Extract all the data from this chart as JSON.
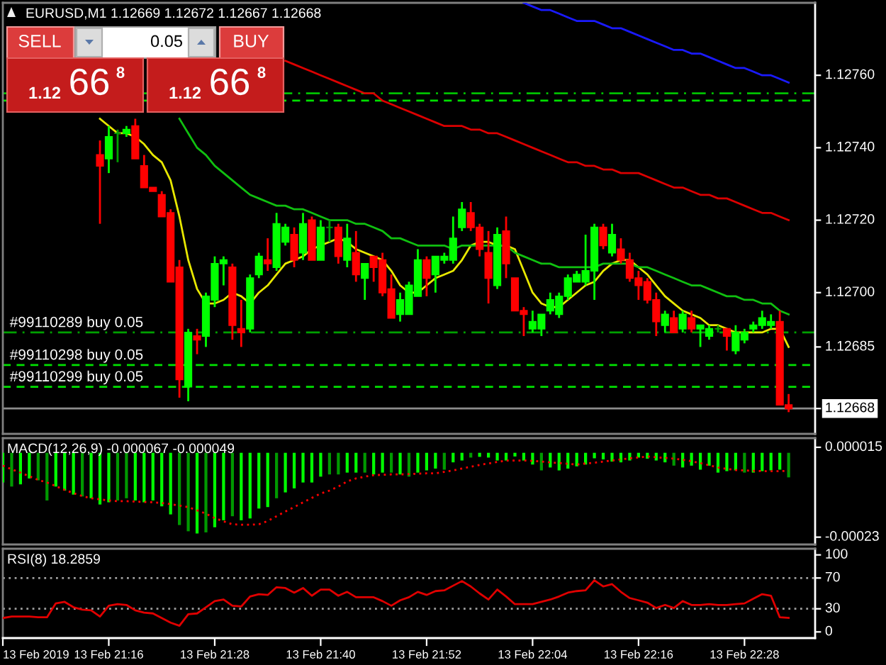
{
  "chart_data": [
    {
      "type": "candlestick",
      "title": "EURUSD,M1 1.12669 1.12672 1.12667 1.12668",
      "x": [
        "2019-02-13T21:15",
        "2019-02-13T21:16",
        "2019-02-13T21:17",
        "2019-02-13T21:18",
        "2019-02-13T21:19",
        "2019-02-13T21:20",
        "2019-02-13T21:21",
        "2019-02-13T21:22",
        "2019-02-13T21:23",
        "2019-02-13T21:24",
        "2019-02-13T21:25",
        "2019-02-13T21:26",
        "2019-02-13T21:27",
        "2019-02-13T21:28",
        "2019-02-13T21:29",
        "2019-02-13T21:30",
        "2019-02-13T21:31",
        "2019-02-13T21:32",
        "2019-02-13T21:33",
        "2019-02-13T21:34",
        "2019-02-13T21:35",
        "2019-02-13T21:36",
        "2019-02-13T21:37",
        "2019-02-13T21:38",
        "2019-02-13T21:39",
        "2019-02-13T21:40",
        "2019-02-13T21:41",
        "2019-02-13T21:42",
        "2019-02-13T21:43",
        "2019-02-13T21:44",
        "2019-02-13T21:45",
        "2019-02-13T21:46",
        "2019-02-13T21:47",
        "2019-02-13T21:48",
        "2019-02-13T21:49",
        "2019-02-13T21:50",
        "2019-02-13T21:51",
        "2019-02-13T21:52",
        "2019-02-13T21:53",
        "2019-02-13T21:54",
        "2019-02-13T21:55",
        "2019-02-13T21:56",
        "2019-02-13T21:57",
        "2019-02-13T21:58",
        "2019-02-13T21:59",
        "2019-02-13T22:00",
        "2019-02-13T22:01",
        "2019-02-13T22:02",
        "2019-02-13T22:03",
        "2019-02-13T22:04",
        "2019-02-13T22:05",
        "2019-02-13T22:06",
        "2019-02-13T22:07",
        "2019-02-13T22:08",
        "2019-02-13T22:09",
        "2019-02-13T22:10",
        "2019-02-13T22:11",
        "2019-02-13T22:12",
        "2019-02-13T22:13",
        "2019-02-13T22:14",
        "2019-02-13T22:15",
        "2019-02-13T22:16",
        "2019-02-13T22:17",
        "2019-02-13T22:18",
        "2019-02-13T22:19",
        "2019-02-13T22:20",
        "2019-02-13T22:21",
        "2019-02-13T22:22",
        "2019-02-13T22:23",
        "2019-02-13T22:24",
        "2019-02-13T22:25",
        "2019-02-13T22:26",
        "2019-02-13T22:27",
        "2019-02-13T22:28",
        "2019-02-13T22:29",
        "2019-02-13T22:30",
        "2019-02-13T22:31",
        "2019-02-13T22:32",
        "2019-02-13T22:33"
      ],
      "ohlc": [
        [
          1.12738,
          1.12742,
          1.12719,
          1.12735
        ],
        [
          1.12737,
          1.12746,
          1.12733,
          1.12743
        ],
        [
          1.12744,
          1.12745,
          1.12736,
          1.12744
        ],
        [
          1.12744,
          1.12746,
          1.12743,
          1.12745
        ],
        [
          1.12746,
          1.12748,
          1.12737,
          1.12737
        ],
        [
          1.12735,
          1.12738,
          1.12729,
          1.12729
        ],
        [
          1.12729,
          1.12729,
          1.12728,
          1.12728
        ],
        [
          1.12727,
          1.12728,
          1.12721,
          1.12721
        ],
        [
          1.12722,
          1.12723,
          1.12703,
          1.12703
        ],
        [
          1.12707,
          1.12709,
          1.12671,
          1.12676
        ],
        [
          1.12674,
          1.1269,
          1.1267,
          1.12689
        ],
        [
          1.12688,
          1.1269,
          1.12683,
          1.12687
        ],
        [
          1.12688,
          1.127,
          1.12685,
          1.12699
        ],
        [
          1.12698,
          1.1271,
          1.12696,
          1.12708
        ],
        [
          1.12708,
          1.1271,
          1.12702,
          1.12709
        ],
        [
          1.12707,
          1.12708,
          1.12687,
          1.12691
        ],
        [
          1.1269,
          1.12698,
          1.12685,
          1.12689
        ],
        [
          1.1269,
          1.12705,
          1.12689,
          1.12704
        ],
        [
          1.12705,
          1.12711,
          1.12704,
          1.1271
        ],
        [
          1.12709,
          1.12715,
          1.12706,
          1.12708
        ],
        [
          1.12707,
          1.12722,
          1.12706,
          1.12719
        ],
        [
          1.12714,
          1.12719,
          1.12713,
          1.12718
        ],
        [
          1.12716,
          1.12718,
          1.12707,
          1.12709
        ],
        [
          1.12711,
          1.12722,
          1.12709,
          1.12719
        ],
        [
          1.1272,
          1.12721,
          1.12709,
          1.12709
        ],
        [
          1.12709,
          1.1272,
          1.12709,
          1.12718
        ],
        [
          1.12718,
          1.1272,
          1.12714,
          1.12718
        ],
        [
          1.12718,
          1.12719,
          1.12708,
          1.1271
        ],
        [
          1.12709,
          1.12719,
          1.12707,
          1.12715
        ],
        [
          1.12711,
          1.12717,
          1.12703,
          1.12705
        ],
        [
          1.12704,
          1.12708,
          1.12698,
          1.12708
        ],
        [
          1.1271,
          1.1271,
          1.12703,
          1.12707
        ],
        [
          1.12709,
          1.12711,
          1.12699,
          1.127
        ],
        [
          1.12701,
          1.12705,
          1.12693,
          1.12693
        ],
        [
          1.12694,
          1.127,
          1.12692,
          1.12698
        ],
        [
          1.12694,
          1.12703,
          1.12694,
          1.12702
        ],
        [
          1.12699,
          1.12712,
          1.12699,
          1.12709
        ],
        [
          1.12709,
          1.1271,
          1.12699,
          1.12704
        ],
        [
          1.12705,
          1.1271,
          1.127,
          1.1271
        ],
        [
          1.12709,
          1.12711,
          1.12708,
          1.1271
        ],
        [
          1.12709,
          1.12721,
          1.12708,
          1.12715
        ],
        [
          1.12718,
          1.12725,
          1.12717,
          1.12723
        ],
        [
          1.12722,
          1.12725,
          1.12717,
          1.12718
        ],
        [
          1.12718,
          1.12719,
          1.1271,
          1.12712
        ],
        [
          1.12711,
          1.12717,
          1.12697,
          1.12704
        ],
        [
          1.12702,
          1.12718,
          1.12701,
          1.12716
        ],
        [
          1.12717,
          1.12721,
          1.12704,
          1.12708
        ],
        [
          1.12704,
          1.12704,
          1.12695,
          1.12695
        ],
        [
          1.12695,
          1.12696,
          1.12688,
          1.12694
        ],
        [
          1.1269,
          1.12695,
          1.12689,
          1.12692
        ],
        [
          1.1269,
          1.12694,
          1.12688,
          1.12694
        ],
        [
          1.12695,
          1.127,
          1.12694,
          1.12698
        ],
        [
          1.12694,
          1.127,
          1.12693,
          1.12699
        ],
        [
          1.12699,
          1.12705,
          1.12698,
          1.12704
        ],
        [
          1.12703,
          1.12706,
          1.12703,
          1.12705
        ],
        [
          1.12703,
          1.12716,
          1.12702,
          1.12706
        ],
        [
          1.12706,
          1.12719,
          1.12698,
          1.12718
        ],
        [
          1.12718,
          1.12719,
          1.12712,
          1.12713
        ],
        [
          1.12711,
          1.12719,
          1.1271,
          1.12716
        ],
        [
          1.12712,
          1.12715,
          1.12708,
          1.12709
        ],
        [
          1.12709,
          1.12711,
          1.12703,
          1.12704
        ],
        [
          1.12704,
          1.12706,
          1.12698,
          1.12702
        ],
        [
          1.12703,
          1.12704,
          1.12697,
          1.12698
        ],
        [
          1.12698,
          1.127,
          1.12688,
          1.12692
        ],
        [
          1.12691,
          1.12695,
          1.12689,
          1.12694
        ],
        [
          1.12693,
          1.12695,
          1.12689,
          1.12689
        ],
        [
          1.1269,
          1.12695,
          1.12689,
          1.12694
        ],
        [
          1.12693,
          1.12695,
          1.12689,
          1.1269
        ],
        [
          1.1269,
          1.12691,
          1.12685,
          1.12691
        ],
        [
          1.12688,
          1.12691,
          1.12687,
          1.1269
        ],
        [
          1.1269,
          1.12691,
          1.12689,
          1.1269
        ],
        [
          1.1269,
          1.1269,
          1.12684,
          1.12688
        ],
        [
          1.12684,
          1.12691,
          1.12683,
          1.12689
        ],
        [
          1.12687,
          1.1269,
          1.12686,
          1.12689
        ],
        [
          1.1269,
          1.12692,
          1.12689,
          1.12691
        ],
        [
          1.12691,
          1.12695,
          1.1269,
          1.12693
        ],
        [
          1.12691,
          1.12694,
          1.1269,
          1.12692
        ],
        [
          1.12692,
          1.12695,
          1.12669,
          1.12669
        ],
        [
          1.12669,
          1.12672,
          1.12667,
          1.12668
        ]
      ],
      "colors": [
        "#ff0000",
        "#00ff00",
        "#00a000",
        "#00ff00",
        "#ff0000",
        "#ff0000",
        "#ff0000",
        "#ff0000",
        "#ff0000",
        "#ff0000",
        "#00ff00",
        "#ff0000",
        "#00ff00",
        "#00ff00",
        "#00ff00",
        "#ff0000",
        "#ff0000",
        "#00ff00",
        "#00ff00",
        "#ff0000",
        "#00ff00",
        "#00ff00",
        "#ff0000",
        "#00ff00",
        "#ff0000",
        "#00ff00",
        "#00a000",
        "#ff0000",
        "#00ff00",
        "#ff0000",
        "#00ff00",
        "#ff0000",
        "#ff0000",
        "#ff0000",
        "#00ff00",
        "#00ff00",
        "#00ff00",
        "#ff0000",
        "#00ff00",
        "#00ff00",
        "#00ff00",
        "#00ff00",
        "#ff0000",
        "#ff0000",
        "#ff0000",
        "#00ff00",
        "#ff0000",
        "#ff0000",
        "#ff0000",
        "#00ff00",
        "#00ff00",
        "#00ff00",
        "#00ff00",
        "#00ff00",
        "#00ff00",
        "#00ff00",
        "#00ff00",
        "#ff0000",
        "#00ff00",
        "#ff0000",
        "#ff0000",
        "#ff0000",
        "#ff0000",
        "#ff0000",
        "#00ff00",
        "#ff0000",
        "#00ff00",
        "#ff0000",
        "#00ff00",
        "#00ff00",
        "#00a000",
        "#ff0000",
        "#00ff00",
        "#00ff00",
        "#00ff00",
        "#00ff00",
        "#00ff00",
        "#ff0000",
        "#ff0000"
      ],
      "series": [
        {
          "type": "line",
          "color": "#e8e800",
          "values": [
            1.12748,
            1.12746,
            1.12744,
            1.12744,
            1.12743,
            1.12741,
            1.12738,
            1.12736,
            1.12731,
            1.12721,
            1.12709,
            1.12701,
            1.12697,
            1.12697,
            1.12698,
            1.127,
            1.12699,
            1.12697,
            1.127,
            1.12702,
            1.12705,
            1.12708,
            1.12709,
            1.1271,
            1.12712,
            1.12713,
            1.12714,
            1.12715,
            1.12714,
            1.12712,
            1.12711,
            1.1271,
            1.12709,
            1.12706,
            1.12702,
            1.127,
            1.127,
            1.12702,
            1.12704,
            1.12705,
            1.12706,
            1.12709,
            1.12713,
            1.12714,
            1.12714,
            1.12713,
            1.12713,
            1.12712,
            1.12706,
            1.127,
            1.12697,
            1.12696,
            1.12696,
            1.12698,
            1.127,
            1.12702,
            1.12703,
            1.12706,
            1.12708,
            1.12709,
            1.12709,
            1.12707,
            1.12705,
            1.12702,
            1.12699,
            1.12697,
            1.12695,
            1.12694,
            1.12693,
            1.12691,
            1.12691,
            1.1269,
            1.12689,
            1.12689,
            1.12689,
            1.12689,
            1.1269,
            1.1269,
            1.12685
          ]
        },
        {
          "type": "line",
          "color": "#10c010",
          "values": [
            null,
            null,
            null,
            null,
            null,
            null,
            null,
            null,
            null,
            1.12748,
            1.12744,
            1.1274,
            1.12738,
            1.12735,
            1.12733,
            1.12731,
            1.12729,
            1.12727,
            1.12726,
            1.12725,
            1.12724,
            1.12724,
            1.12723,
            1.12723,
            1.12722,
            1.12721,
            1.1272,
            1.1272,
            1.1272,
            1.12719,
            1.12719,
            1.12718,
            1.12717,
            1.12715,
            1.12715,
            1.12714,
            1.12713,
            1.12713,
            1.12713,
            1.12713,
            1.12712,
            1.12713,
            1.12713,
            1.12713,
            1.12713,
            1.12713,
            1.12713,
            1.12711,
            1.1271,
            1.12709,
            1.12708,
            1.12708,
            1.12707,
            1.12707,
            1.12707,
            1.12707,
            1.12707,
            1.12708,
            1.12708,
            1.12708,
            1.12708,
            1.12707,
            1.12707,
            1.12706,
            1.12705,
            1.12704,
            1.12703,
            1.12702,
            1.12702,
            1.12701,
            1.127,
            1.12699,
            1.12699,
            1.12698,
            1.12698,
            1.12697,
            1.12697,
            1.12695,
            1.12694
          ]
        },
        {
          "type": "line",
          "color": "#dc0000",
          "values": [
            null,
            null,
            null,
            null,
            null,
            null,
            null,
            null,
            null,
            null,
            null,
            null,
            null,
            null,
            null,
            null,
            null,
            null,
            null,
            null,
            null,
            1.12764,
            1.12763,
            1.12762,
            1.12761,
            1.1276,
            1.12759,
            1.12758,
            1.12757,
            1.12756,
            1.12755,
            1.12755,
            1.12753,
            1.12752,
            1.12751,
            1.1275,
            1.12749,
            1.12748,
            1.12747,
            1.12746,
            1.12746,
            1.12746,
            1.12745,
            1.12745,
            1.12744,
            1.12744,
            1.12743,
            1.12742,
            1.12741,
            1.1274,
            1.12739,
            1.12738,
            1.12737,
            1.12736,
            1.12736,
            1.12735,
            1.12735,
            1.12734,
            1.12734,
            1.12733,
            1.12733,
            1.12733,
            1.12732,
            1.12731,
            1.1273,
            1.12729,
            1.12729,
            1.12728,
            1.12727,
            1.12727,
            1.12726,
            1.12726,
            1.12725,
            1.12724,
            1.12723,
            1.12722,
            1.12722,
            1.12721,
            1.1272
          ]
        },
        {
          "type": "line",
          "color": "#1a1aff",
          "values": [
            null,
            null,
            null,
            null,
            null,
            null,
            null,
            null,
            null,
            null,
            null,
            null,
            null,
            null,
            null,
            null,
            null,
            null,
            null,
            null,
            null,
            null,
            null,
            null,
            null,
            null,
            null,
            null,
            null,
            null,
            null,
            null,
            null,
            null,
            null,
            null,
            null,
            null,
            null,
            null,
            null,
            null,
            null,
            null,
            null,
            null,
            null,
            null,
            1.1278,
            1.12779,
            1.12778,
            1.12778,
            1.12777,
            1.12776,
            1.12775,
            1.12775,
            1.12775,
            1.12774,
            1.12773,
            1.12773,
            1.12772,
            1.12771,
            1.1277,
            1.12769,
            1.12768,
            1.12767,
            1.12767,
            1.12766,
            1.12766,
            1.12765,
            1.12764,
            1.12763,
            1.12762,
            1.12762,
            1.12761,
            1.1276,
            1.1276,
            1.12759,
            1.12758
          ]
        }
      ],
      "xlim": [
        "2019-02-13T21:04",
        "2019-02-13T22:36"
      ],
      "ylim": [
        1.12661,
        1.1278
      ],
      "yticks": [
        {
          "value": 1.1276,
          "label": "1.12760"
        },
        {
          "value": 1.1274,
          "label": "1.12740"
        },
        {
          "value": 1.1272,
          "label": "1.12720"
        },
        {
          "value": 1.127,
          "label": "1.12700"
        },
        {
          "value": 1.12685,
          "label": "1.12685"
        },
        {
          "value": 1.12668,
          "label": "1.12668"
        }
      ],
      "tick_labels": "y",
      "ref_lines": [
        {
          "axis": "y",
          "value": 1.12755,
          "color": "#00c000",
          "line_style": "dashdot"
        },
        {
          "axis": "y",
          "value": 1.12753,
          "color": "#00e000",
          "line_style": "dashed"
        },
        {
          "axis": "y",
          "value": 1.12689,
          "label": "#99110289 buy 0.05",
          "color": "#00a000",
          "line_style": "dashdot"
        },
        {
          "axis": "y",
          "value": 1.1268,
          "label": "#99110298 buy 0.05",
          "color": "#00e000",
          "line_style": "dashed"
        },
        {
          "axis": "y",
          "value": 1.12674,
          "label": "#99110299 buy 0.05",
          "color": "#00e000",
          "line_style": "dashed"
        },
        {
          "axis": "y",
          "value": 1.12668,
          "color": "#8c8c8c",
          "line_style": "solid"
        }
      ],
      "annotations": [
        "SELL",
        "0.05",
        "BUY",
        "1.12",
        "66",
        "8",
        "1.12",
        "66",
        "8"
      ],
      "grid": false
    },
    {
      "type": "bar",
      "title": "MACD(12,26,9) -0.000067 -0.000049",
      "x": [
        "2019-02-13T21:04",
        "2019-02-13T21:05",
        "2019-02-13T21:06",
        "2019-02-13T21:07",
        "2019-02-13T21:08",
        "2019-02-13T21:09",
        "2019-02-13T21:10",
        "2019-02-13T21:11",
        "2019-02-13T21:12",
        "2019-02-13T21:13",
        "2019-02-13T21:14",
        "2019-02-13T21:15",
        "2019-02-13T21:16",
        "2019-02-13T21:17",
        "2019-02-13T21:18",
        "2019-02-13T21:19",
        "2019-02-13T21:20",
        "2019-02-13T21:21",
        "2019-02-13T21:22",
        "2019-02-13T21:23",
        "2019-02-13T21:24",
        "2019-02-13T21:25",
        "2019-02-13T21:26",
        "2019-02-13T21:27",
        "2019-02-13T21:28",
        "2019-02-13T21:29",
        "2019-02-13T21:30",
        "2019-02-13T21:31",
        "2019-02-13T21:32",
        "2019-02-13T21:33",
        "2019-02-13T21:34",
        "2019-02-13T21:35",
        "2019-02-13T21:36",
        "2019-02-13T21:37",
        "2019-02-13T21:38",
        "2019-02-13T21:39",
        "2019-02-13T21:40",
        "2019-02-13T21:41",
        "2019-02-13T21:42",
        "2019-02-13T21:43",
        "2019-02-13T21:44",
        "2019-02-13T21:45",
        "2019-02-13T21:46",
        "2019-02-13T21:47",
        "2019-02-13T21:48",
        "2019-02-13T21:49",
        "2019-02-13T21:50",
        "2019-02-13T21:51",
        "2019-02-13T21:52",
        "2019-02-13T21:53",
        "2019-02-13T21:54",
        "2019-02-13T21:55",
        "2019-02-13T21:56",
        "2019-02-13T21:57",
        "2019-02-13T21:58",
        "2019-02-13T21:59",
        "2019-02-13T22:00",
        "2019-02-13T22:01",
        "2019-02-13T22:02",
        "2019-02-13T22:03",
        "2019-02-13T22:04",
        "2019-02-13T22:05",
        "2019-02-13T22:06",
        "2019-02-13T22:07",
        "2019-02-13T22:08",
        "2019-02-13T22:09",
        "2019-02-13T22:10",
        "2019-02-13T22:11",
        "2019-02-13T22:12",
        "2019-02-13T22:13",
        "2019-02-13T22:14",
        "2019-02-13T22:15",
        "2019-02-13T22:16",
        "2019-02-13T22:17",
        "2019-02-13T22:18",
        "2019-02-13T22:19",
        "2019-02-13T22:20",
        "2019-02-13T22:21",
        "2019-02-13T22:22",
        "2019-02-13T22:23",
        "2019-02-13T22:24",
        "2019-02-13T22:25",
        "2019-02-13T22:26",
        "2019-02-13T22:27",
        "2019-02-13T22:28",
        "2019-02-13T22:29",
        "2019-02-13T22:30",
        "2019-02-13T22:31",
        "2019-02-13T22:32",
        "2019-02-13T22:33"
      ],
      "series": [
        {
          "colors": [
            "#00ff00",
            "#009900",
            "#00ff00",
            "#00ff00",
            "#009900",
            "#009900",
            "#00ff00",
            "#00ff00",
            "#00ff00",
            "#009900",
            "#00ff00",
            "#00ff00",
            "#00ff00",
            "#009900",
            "#009900",
            "#00ff00",
            "#00ff00",
            "#00ff00",
            "#00ff00",
            "#00ff00",
            "#009900",
            "#009900",
            "#00ff00",
            "#009900",
            "#00ff00",
            "#00ff00",
            "#009900",
            "#00ff00",
            "#00ff00",
            "#00ff00",
            "#00ff00",
            "#009900",
            "#00ff00",
            "#00ff00",
            "#00ff00",
            "#00ff00",
            "#00ff00",
            "#009900",
            "#009900",
            "#00ff00",
            "#00ff00",
            "#009900",
            "#00ff00",
            "#00ff00",
            "#009900",
            "#00ff00",
            "#009900",
            "#00ff00",
            "#00ff00",
            "#00ff00",
            "#009900",
            "#00ff00",
            "#00ff00",
            "#009900",
            "#00ff00",
            "#00ff00",
            "#00ff00",
            "#00ff00",
            "#00ff00",
            "#00ff00",
            "#00ff00",
            "#009900",
            "#00ff00",
            "#00ff00",
            "#00ff00",
            "#00ff00",
            "#00ff00",
            "#00ff00",
            "#00ff00",
            "#00ff00",
            "#00ff00",
            "#00ff00",
            "#00ff00",
            "#00ff00",
            "#00ff00",
            "#00ff00",
            "#009900",
            "#00ff00",
            "#00ff00",
            "#00ff00",
            "#00ff00",
            "#00ff00",
            "#00ff00",
            "#00ff00",
            "#009900",
            "#00ff00",
            "#00ff00",
            "#00ff00",
            "#00ff00",
            "#009900"
          ],
          "values": [
            -8.1e-05,
            -9.2e-05,
            -8.6e-05,
            -7e-05,
            -7.5e-05,
            -0.00013,
            -9.2e-05,
            -0.000103,
            -0.000114,
            -0.000119,
            -0.000124,
            -0.000141,
            -0.000135,
            -0.00013,
            -0.000124,
            -0.00013,
            -0.000135,
            -0.00013,
            -0.000146,
            -0.000168,
            -0.000197,
            -0.000214,
            -0.00022,
            -0.000217,
            -0.000203,
            -0.000184,
            -0.000173,
            -0.000184,
            -0.000179,
            -0.000152,
            -0.000148,
            -0.000124,
            -0.000108,
            -9.7e-05,
            -8.1e-05,
            -8.1e-05,
            -6.5e-05,
            -5.9e-05,
            -5.9e-05,
            -5.4e-05,
            -5.4e-05,
            -5.4e-05,
            -5.9e-05,
            -5.4e-05,
            -5.4e-05,
            -5.9e-05,
            -6.5e-05,
            -5.4e-05,
            -4.8e-05,
            -4.3e-05,
            -4.6e-05,
            -2.6e-05,
            -2.1e-05,
            -1.3e-05,
            -1.1e-05,
            -1.3e-05,
            -2.1e-05,
            -2.1e-05,
            -1e-05,
            -2.1e-05,
            -3.2e-05,
            -4.8e-05,
            -4e-05,
            -4.8e-05,
            -4.3e-05,
            -3.7e-05,
            -3.2e-05,
            -1.5e-05,
            -1.8e-05,
            -2.4e-05,
            -2.6e-05,
            -2.1e-05,
            -1.3e-05,
            -1.6e-05,
            -2.1e-05,
            -2.6e-05,
            -3.5e-05,
            -4e-05,
            -3.5e-05,
            -4.6e-05,
            -3.5e-05,
            -5.4e-05,
            -5e-05,
            -4.8e-05,
            -5.4e-05,
            -5.4e-05,
            -5e-05,
            -4.8e-05,
            -4.6e-05,
            -6.7e-05
          ]
        },
        {
          "type": "line",
          "color": "#ff0000",
          "line_style": "dotted",
          "values": [
            -3.5e-05,
            -4.5e-05,
            -5.4e-05,
            -6.4e-05,
            -7.4e-05,
            -8.1e-05,
            -9.1e-05,
            -0.000101,
            -0.00011,
            -0.000118,
            -0.000124,
            -0.000127,
            -0.00013,
            -0.000132,
            -0.000132,
            -0.000133,
            -0.000134,
            -0.000135,
            -0.000137,
            -0.00014,
            -0.000144,
            -0.000148,
            -0.000157,
            -0.000166,
            -0.000178,
            -0.000187,
            -0.000195,
            -0.000196,
            -0.000196,
            -0.000195,
            -0.000186,
            -0.000173,
            -0.00016,
            -0.000148,
            -0.000135,
            -0.000123,
            -0.000111,
            -0.000103,
            -9.2e-05,
            -7.8e-05,
            -7e-05,
            -6.5e-05,
            -6.1e-05,
            -6e-05,
            -5.9e-05,
            -5.9e-05,
            -5.8e-05,
            -5.7e-05,
            -5.6e-05,
            -5.6e-05,
            -5.2e-05,
            -4.8e-05,
            -4.3e-05,
            -3.8e-05,
            -3.3e-05,
            -2.9e-05,
            -2.5e-05,
            -2.1e-05,
            -2.1e-05,
            -2.1e-05,
            -2.2e-05,
            -2.4e-05,
            -2.6e-05,
            -2.8e-05,
            -3e-05,
            -3.2e-05,
            -2.9e-05,
            -2.7e-05,
            -2.4e-05,
            -2.1e-05,
            -1.8e-05,
            -1.5e-05,
            -1.3e-05,
            -1e-05,
            -1.2e-05,
            -1.4e-05,
            -1.6e-05,
            -1.9e-05,
            -2.3e-05,
            -2.8e-05,
            -3.4e-05,
            -4e-05,
            -4.4e-05,
            -4.7e-05,
            -4.8e-05,
            -4.9e-05,
            -5e-05,
            -5e-05,
            -5e-05,
            -4.9e-05
          ]
        }
      ],
      "xlim": [
        "2019-02-13T21:04",
        "2019-02-13T22:36"
      ],
      "ylim": [
        -0.00025,
        4e-05
      ],
      "yticks": [
        {
          "value": 1.5e-05,
          "label": "0.000015"
        },
        {
          "value": -0.00023,
          "label": "-0.00023"
        }
      ],
      "tick_labels": "y",
      "grid": false
    },
    {
      "type": "line",
      "title": "RSI(8) 18.2859",
      "x": [
        "2019-02-13T21:04",
        "2019-02-13T21:05",
        "2019-02-13T21:06",
        "2019-02-13T21:07",
        "2019-02-13T21:08",
        "2019-02-13T21:09",
        "2019-02-13T21:10",
        "2019-02-13T21:11",
        "2019-02-13T21:12",
        "2019-02-13T21:13",
        "2019-02-13T21:14",
        "2019-02-13T21:15",
        "2019-02-13T21:16",
        "2019-02-13T21:17",
        "2019-02-13T21:18",
        "2019-02-13T21:19",
        "2019-02-13T21:20",
        "2019-02-13T21:21",
        "2019-02-13T21:22",
        "2019-02-13T21:23",
        "2019-02-13T21:24",
        "2019-02-13T21:25",
        "2019-02-13T21:26",
        "2019-02-13T21:27",
        "2019-02-13T21:28",
        "2019-02-13T21:29",
        "2019-02-13T21:30",
        "2019-02-13T21:31",
        "2019-02-13T21:32",
        "2019-02-13T21:33",
        "2019-02-13T21:34",
        "2019-02-13T21:35",
        "2019-02-13T21:36",
        "2019-02-13T21:37",
        "2019-02-13T21:38",
        "2019-02-13T21:39",
        "2019-02-13T21:40",
        "2019-02-13T21:41",
        "2019-02-13T21:42",
        "2019-02-13T21:43",
        "2019-02-13T21:44",
        "2019-02-13T21:45",
        "2019-02-13T21:46",
        "2019-02-13T21:47",
        "2019-02-13T21:48",
        "2019-02-13T21:49",
        "2019-02-13T21:50",
        "2019-02-13T21:51",
        "2019-02-13T21:52",
        "2019-02-13T21:53",
        "2019-02-13T21:54",
        "2019-02-13T21:55",
        "2019-02-13T21:56",
        "2019-02-13T21:57",
        "2019-02-13T21:58",
        "2019-02-13T21:59",
        "2019-02-13T22:00",
        "2019-02-13T22:01",
        "2019-02-13T22:02",
        "2019-02-13T22:03",
        "2019-02-13T22:04",
        "2019-02-13T22:05",
        "2019-02-13T22:06",
        "2019-02-13T22:07",
        "2019-02-13T22:08",
        "2019-02-13T22:09",
        "2019-02-13T22:10",
        "2019-02-13T22:11",
        "2019-02-13T22:12",
        "2019-02-13T22:13",
        "2019-02-13T22:14",
        "2019-02-13T22:15",
        "2019-02-13T22:16",
        "2019-02-13T22:17",
        "2019-02-13T22:18",
        "2019-02-13T22:19",
        "2019-02-13T22:20",
        "2019-02-13T22:21",
        "2019-02-13T22:22",
        "2019-02-13T22:23",
        "2019-02-13T22:24",
        "2019-02-13T22:25",
        "2019-02-13T22:26",
        "2019-02-13T22:27",
        "2019-02-13T22:28",
        "2019-02-13T22:29",
        "2019-02-13T22:30",
        "2019-02-13T22:31",
        "2019-02-13T22:32",
        "2019-02-13T22:33"
      ],
      "series": [
        {
          "color": "#e00000",
          "values": [
            18,
            20,
            20,
            20,
            19,
            19,
            37,
            39,
            32,
            29,
            28,
            20,
            34,
            36,
            35,
            28,
            25,
            24,
            18,
            12,
            8,
            23,
            24,
            32,
            40,
            42,
            34,
            33,
            46,
            49,
            48,
            58,
            57,
            51,
            57,
            47,
            55,
            55,
            47,
            52,
            45,
            45,
            45,
            40,
            34,
            41,
            45,
            52,
            48,
            53,
            54,
            60,
            66,
            59,
            50,
            42,
            55,
            46,
            36,
            36,
            36,
            39,
            42,
            46,
            51,
            53,
            54,
            67,
            59,
            62,
            52,
            44,
            41,
            38,
            31,
            35,
            31,
            40,
            35,
            35,
            36,
            35,
            35,
            36,
            37,
            43,
            49,
            47,
            19,
            18.2859
          ]
        }
      ],
      "xlim": [
        "2019-02-13T21:04",
        "2019-02-13T22:36"
      ],
      "xticks": [
        {
          "value": "2019-02-13T21:04",
          "label": "13 Feb 2019"
        },
        {
          "value": "2019-02-13T21:16",
          "label": "13 Feb 21:16"
        },
        {
          "value": "2019-02-13T21:28",
          "label": "13 Feb 21:28"
        },
        {
          "value": "2019-02-13T21:40",
          "label": "13 Feb 21:40"
        },
        {
          "value": "2019-02-13T21:52",
          "label": "13 Feb 21:52"
        },
        {
          "value": "2019-02-13T22:04",
          "label": "13 Feb 22:04"
        },
        {
          "value": "2019-02-13T22:16",
          "label": "13 Feb 22:16"
        },
        {
          "value": "2019-02-13T22:28",
          "label": "13 Feb 22:28"
        }
      ],
      "ylim": [
        -8,
        108
      ],
      "yticks": [
        100,
        70,
        30,
        0
      ],
      "ref_lines": [
        {
          "axis": "y",
          "value": 70,
          "color": "#a0a0a0",
          "line_style": "dotted"
        },
        {
          "axis": "y",
          "value": 30,
          "color": "#a0a0a0",
          "line_style": "dotted"
        }
      ],
      "grid": false
    }
  ]
}
